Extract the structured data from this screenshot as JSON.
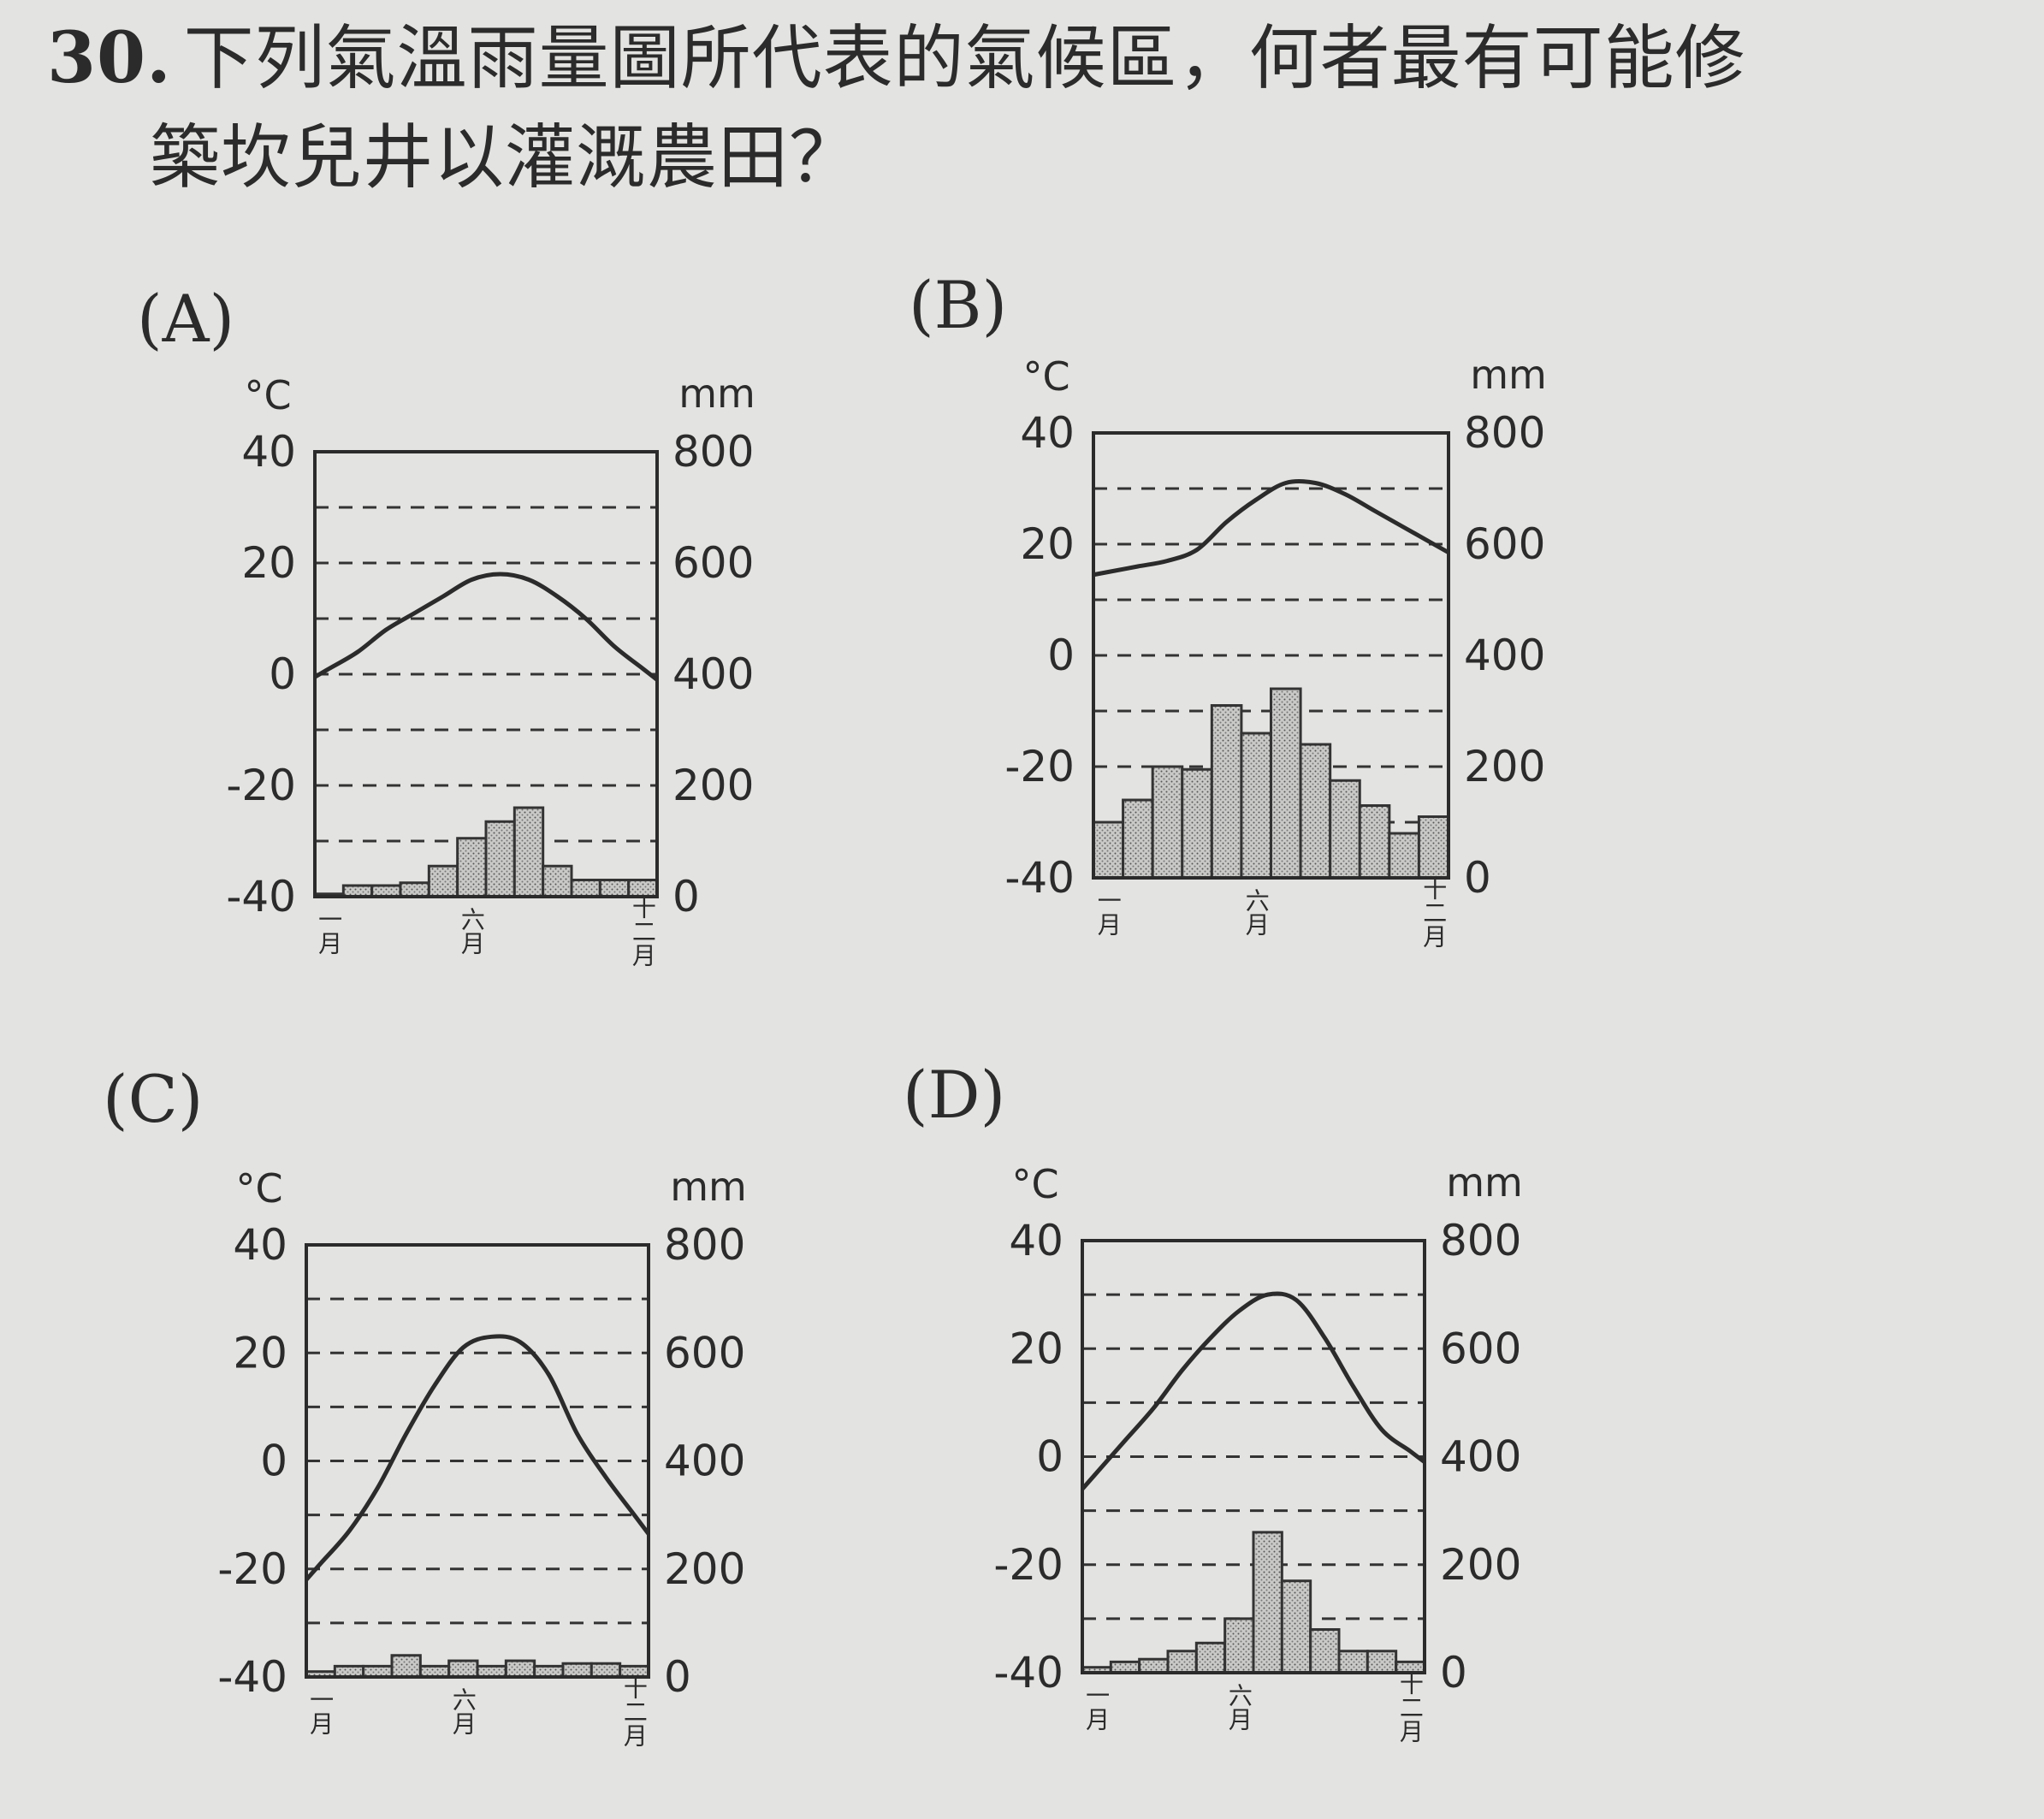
{
  "question": {
    "number": "30.",
    "line1": "下列氣溫雨量圖所代表的氣候區，何者最有可能修",
    "line2": "築坎兒井以灌溉農田？"
  },
  "chart_data": [
    {
      "type": "bar+line",
      "option": "(A)",
      "temp_unit": "°C",
      "precip_unit": "mm",
      "temp_ticks": [
        "40",
        "20",
        "0",
        "-20",
        "-40"
      ],
      "precip_ticks": [
        "800",
        "600",
        "400",
        "200",
        "0"
      ],
      "temp_range": [
        -40,
        40
      ],
      "precip_range": [
        0,
        800
      ],
      "month_labels": [
        "一月",
        "六月",
        "十二月"
      ],
      "temperature": [
        1,
        4,
        8,
        11,
        14,
        17,
        18,
        17,
        14,
        10,
        5,
        1
      ],
      "precipitation": [
        5,
        20,
        20,
        25,
        55,
        105,
        135,
        160,
        55,
        30,
        30,
        30
      ]
    },
    {
      "type": "bar+line",
      "option": "(B)",
      "temp_unit": "°C",
      "precip_unit": "mm",
      "temp_ticks": [
        "40",
        "20",
        "0",
        "-20",
        "-40"
      ],
      "precip_ticks": [
        "800",
        "600",
        "400",
        "200",
        "0"
      ],
      "temp_range": [
        -40,
        40
      ],
      "precip_range": [
        0,
        800
      ],
      "month_labels": [
        "一月",
        "六月",
        "十二月"
      ],
      "temperature": [
        15,
        16,
        17,
        19,
        24,
        28,
        31,
        31,
        29,
        26,
        23,
        20
      ],
      "precipitation": [
        100,
        140,
        200,
        195,
        310,
        260,
        340,
        240,
        175,
        130,
        80,
        110
      ]
    },
    {
      "type": "bar+line",
      "option": "(C)",
      "temp_unit": "°C",
      "precip_unit": "mm",
      "temp_ticks": [
        "40",
        "20",
        "0",
        "-20",
        "-40"
      ],
      "precip_ticks": [
        "800",
        "600",
        "400",
        "200",
        "0"
      ],
      "temp_range": [
        -40,
        40
      ],
      "precip_range": [
        0,
        800
      ],
      "month_labels": [
        "一月",
        "六月",
        "十二月"
      ],
      "temperature": [
        -19,
        -13,
        -5,
        5,
        14,
        21,
        23,
        22,
        16,
        5,
        -3,
        -10
      ],
      "precipitation": [
        10,
        20,
        20,
        40,
        20,
        30,
        20,
        30,
        20,
        25,
        25,
        20
      ]
    },
    {
      "type": "bar+line",
      "option": "(D)",
      "temp_unit": "°C",
      "precip_unit": "mm",
      "temp_ticks": [
        "40",
        "20",
        "0",
        "-20",
        "-40"
      ],
      "precip_ticks": [
        "800",
        "600",
        "400",
        "200",
        "0"
      ],
      "temp_range": [
        -40,
        40
      ],
      "precip_range": [
        0,
        800
      ],
      "month_labels": [
        "一月",
        "六月",
        "十二月"
      ],
      "temperature": [
        -3,
        3,
        9,
        16,
        22,
        27,
        30,
        29,
        22,
        13,
        5,
        1
      ],
      "precipitation": [
        10,
        20,
        25,
        40,
        55,
        100,
        260,
        170,
        80,
        40,
        40,
        20
      ]
    }
  ]
}
